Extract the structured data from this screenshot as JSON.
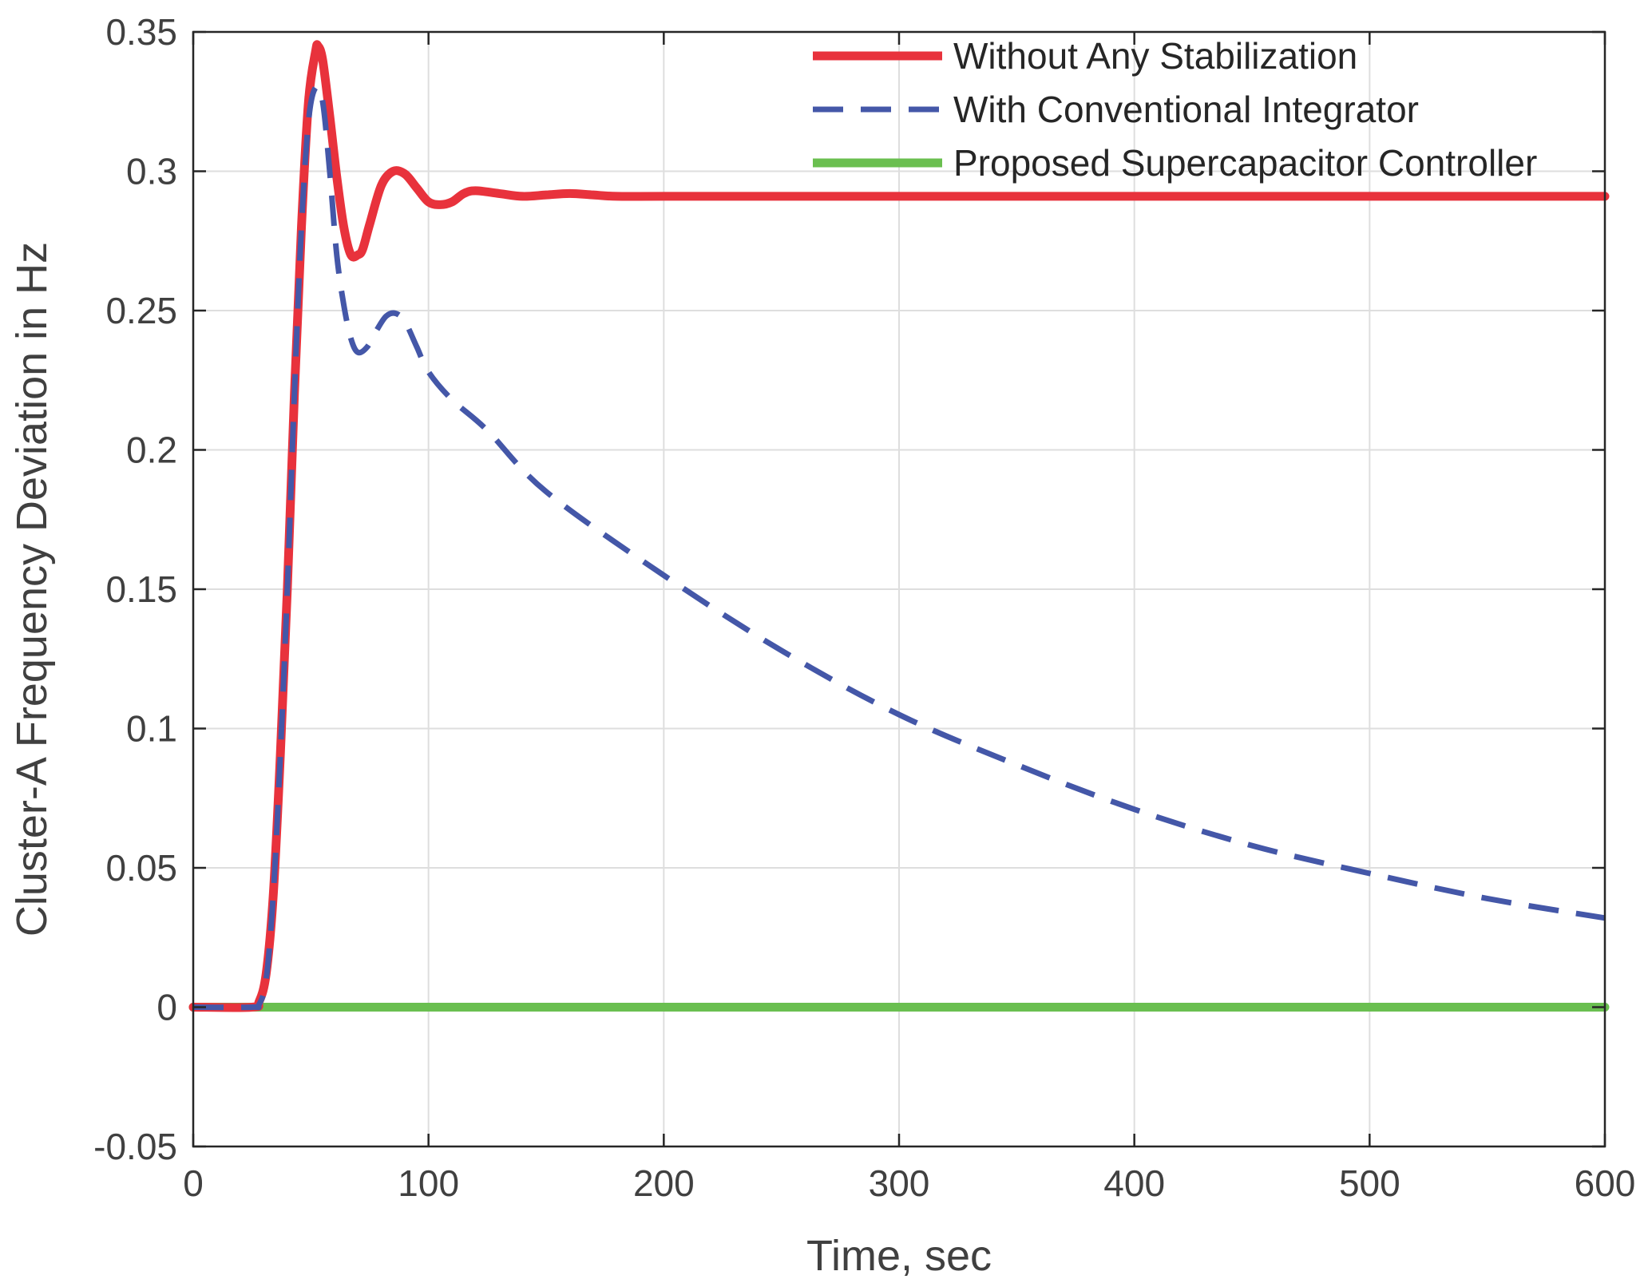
{
  "chart_data": {
    "type": "line",
    "xlabel": "Time, sec",
    "ylabel": "Cluster-A Frequency Deviation in Hz",
    "xlim": [
      0,
      600
    ],
    "ylim": [
      -0.05,
      0.35
    ],
    "xticks": [
      0,
      100,
      200,
      300,
      400,
      500,
      600
    ],
    "xtick_labels": [
      "0",
      "100",
      "200",
      "300",
      "400",
      "500",
      "600"
    ],
    "yticks": [
      -0.05,
      0,
      0.05,
      0.1,
      0.15,
      0.2,
      0.25,
      0.3,
      0.35
    ],
    "ytick_labels": [
      "-0.05",
      "0",
      "0.05",
      "0.1",
      "0.15",
      "0.2",
      "0.25",
      "0.3",
      "0.35"
    ],
    "grid": true,
    "legend_position": "top-right",
    "series": [
      {
        "name": "Without Any Stabilization",
        "color": "#e8323c",
        "style": "solid",
        "x": [
          0,
          25,
          28,
          31,
          34,
          37,
          40,
          43,
          46,
          49,
          52,
          53,
          55,
          58,
          61,
          64,
          67,
          70,
          72,
          75,
          80,
          85,
          90,
          95,
          100,
          105,
          110,
          115,
          120,
          130,
          140,
          150,
          160,
          170,
          180,
          200,
          250,
          300,
          400,
          500,
          600
        ],
        "y": [
          0,
          0,
          0.002,
          0.012,
          0.04,
          0.09,
          0.15,
          0.22,
          0.28,
          0.325,
          0.343,
          0.345,
          0.34,
          0.32,
          0.298,
          0.28,
          0.27,
          0.27,
          0.272,
          0.281,
          0.295,
          0.3,
          0.299,
          0.294,
          0.289,
          0.288,
          0.289,
          0.292,
          0.293,
          0.292,
          0.291,
          0.2915,
          0.292,
          0.2915,
          0.291,
          0.291,
          0.291,
          0.291,
          0.291,
          0.291,
          0.291
        ]
      },
      {
        "name": "With Conventional Integrator",
        "color": "#4457a8",
        "style": "dashed",
        "x": [
          0,
          25,
          28,
          31,
          34,
          37,
          40,
          43,
          46,
          49,
          52,
          55,
          58,
          61,
          64,
          67,
          70,
          74,
          78,
          82,
          86,
          90,
          95,
          100,
          110,
          125,
          150,
          200,
          250,
          300,
          350,
          400,
          450,
          500,
          550,
          600
        ],
        "y": [
          0,
          0,
          0.001,
          0.01,
          0.04,
          0.09,
          0.15,
          0.22,
          0.28,
          0.318,
          0.33,
          0.325,
          0.3,
          0.27,
          0.252,
          0.24,
          0.235,
          0.237,
          0.243,
          0.248,
          0.249,
          0.246,
          0.237,
          0.228,
          0.218,
          0.207,
          0.185,
          0.155,
          0.128,
          0.105,
          0.087,
          0.071,
          0.058,
          0.048,
          0.039,
          0.032
        ]
      },
      {
        "name": "Proposed Supercapacitor Controller",
        "color": "#6abf50",
        "style": "solid",
        "x": [
          0,
          100,
          200,
          300,
          400,
          500,
          600
        ],
        "y": [
          0,
          0,
          0,
          0,
          0,
          0,
          0
        ]
      }
    ]
  }
}
